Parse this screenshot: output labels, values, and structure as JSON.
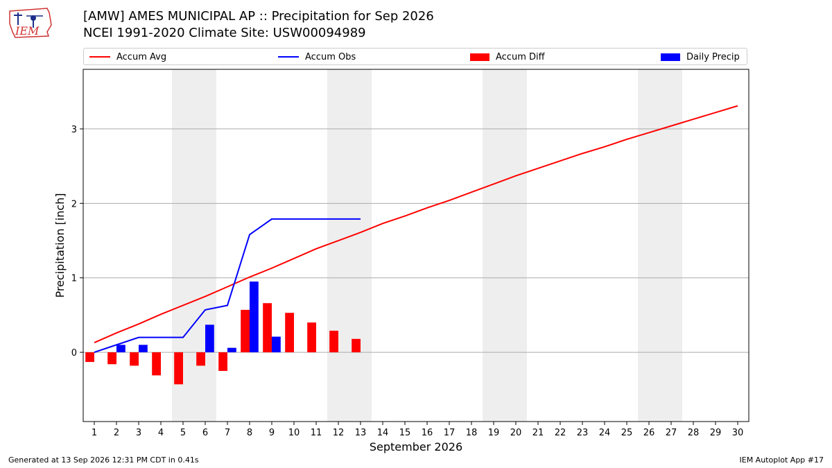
{
  "header": {
    "title_line1": "[AMW] AMES MUNICIPAL AP :: Precipitation for Sep 2026",
    "title_line2": "NCEI 1991-2020 Climate Site: USW00094989",
    "logo_text": "IEM"
  },
  "footer": {
    "left": "Generated at 13 Sep 2026 12:31 PM CDT in 0.41s",
    "right": "IEM Autoplot App #17"
  },
  "colors": {
    "avg": "#ff0000",
    "obs": "#0000ff",
    "diff": "#ff0000",
    "daily": "#0000ff",
    "weekend_shade": "#eeeeee",
    "grid": "#aaaaaa"
  },
  "chart_data": {
    "type": "bar",
    "xlabel": "September 2026",
    "ylabel": "Precipitation [inch]",
    "ylim": [
      -0.93,
      3.8
    ],
    "xlim": [
      0.5,
      30.5
    ],
    "yticks": [
      0,
      1,
      2,
      3
    ],
    "grid": true,
    "legend_position": "top",
    "weekend_shading_days": [
      5,
      6,
      12,
      13,
      19,
      20,
      26,
      27
    ],
    "days": [
      1,
      2,
      3,
      4,
      5,
      6,
      7,
      8,
      9,
      10,
      11,
      12,
      13,
      14,
      15,
      16,
      17,
      18,
      19,
      20,
      21,
      22,
      23,
      24,
      25,
      26,
      27,
      28,
      29,
      30
    ],
    "series": [
      {
        "name": "Accum Avg",
        "kind": "line",
        "values": [
          0.13,
          0.26,
          0.38,
          0.51,
          0.63,
          0.75,
          0.88,
          1.01,
          1.13,
          1.26,
          1.39,
          1.5,
          1.61,
          1.73,
          1.83,
          1.94,
          2.04,
          2.15,
          2.26,
          2.37,
          2.47,
          2.57,
          2.67,
          2.76,
          2.86,
          2.95,
          3.04,
          3.13,
          3.22,
          3.31
        ]
      },
      {
        "name": "Accum Obs",
        "kind": "line",
        "values": [
          0.0,
          0.1,
          0.2,
          0.2,
          0.2,
          0.57,
          0.63,
          1.58,
          1.79,
          1.79,
          1.79,
          1.79,
          1.79
        ]
      },
      {
        "name": "Accum Diff",
        "kind": "bar",
        "values": [
          -0.13,
          -0.16,
          -0.18,
          -0.31,
          -0.43,
          -0.18,
          -0.25,
          0.57,
          0.66,
          0.53,
          0.4,
          0.29,
          0.18
        ]
      },
      {
        "name": "Daily Precip",
        "kind": "bar",
        "values": [
          0.0,
          0.1,
          0.1,
          0.0,
          0.0,
          0.37,
          0.06,
          0.95,
          0.21,
          0.0,
          0.0,
          0.0,
          0.0
        ]
      }
    ]
  }
}
